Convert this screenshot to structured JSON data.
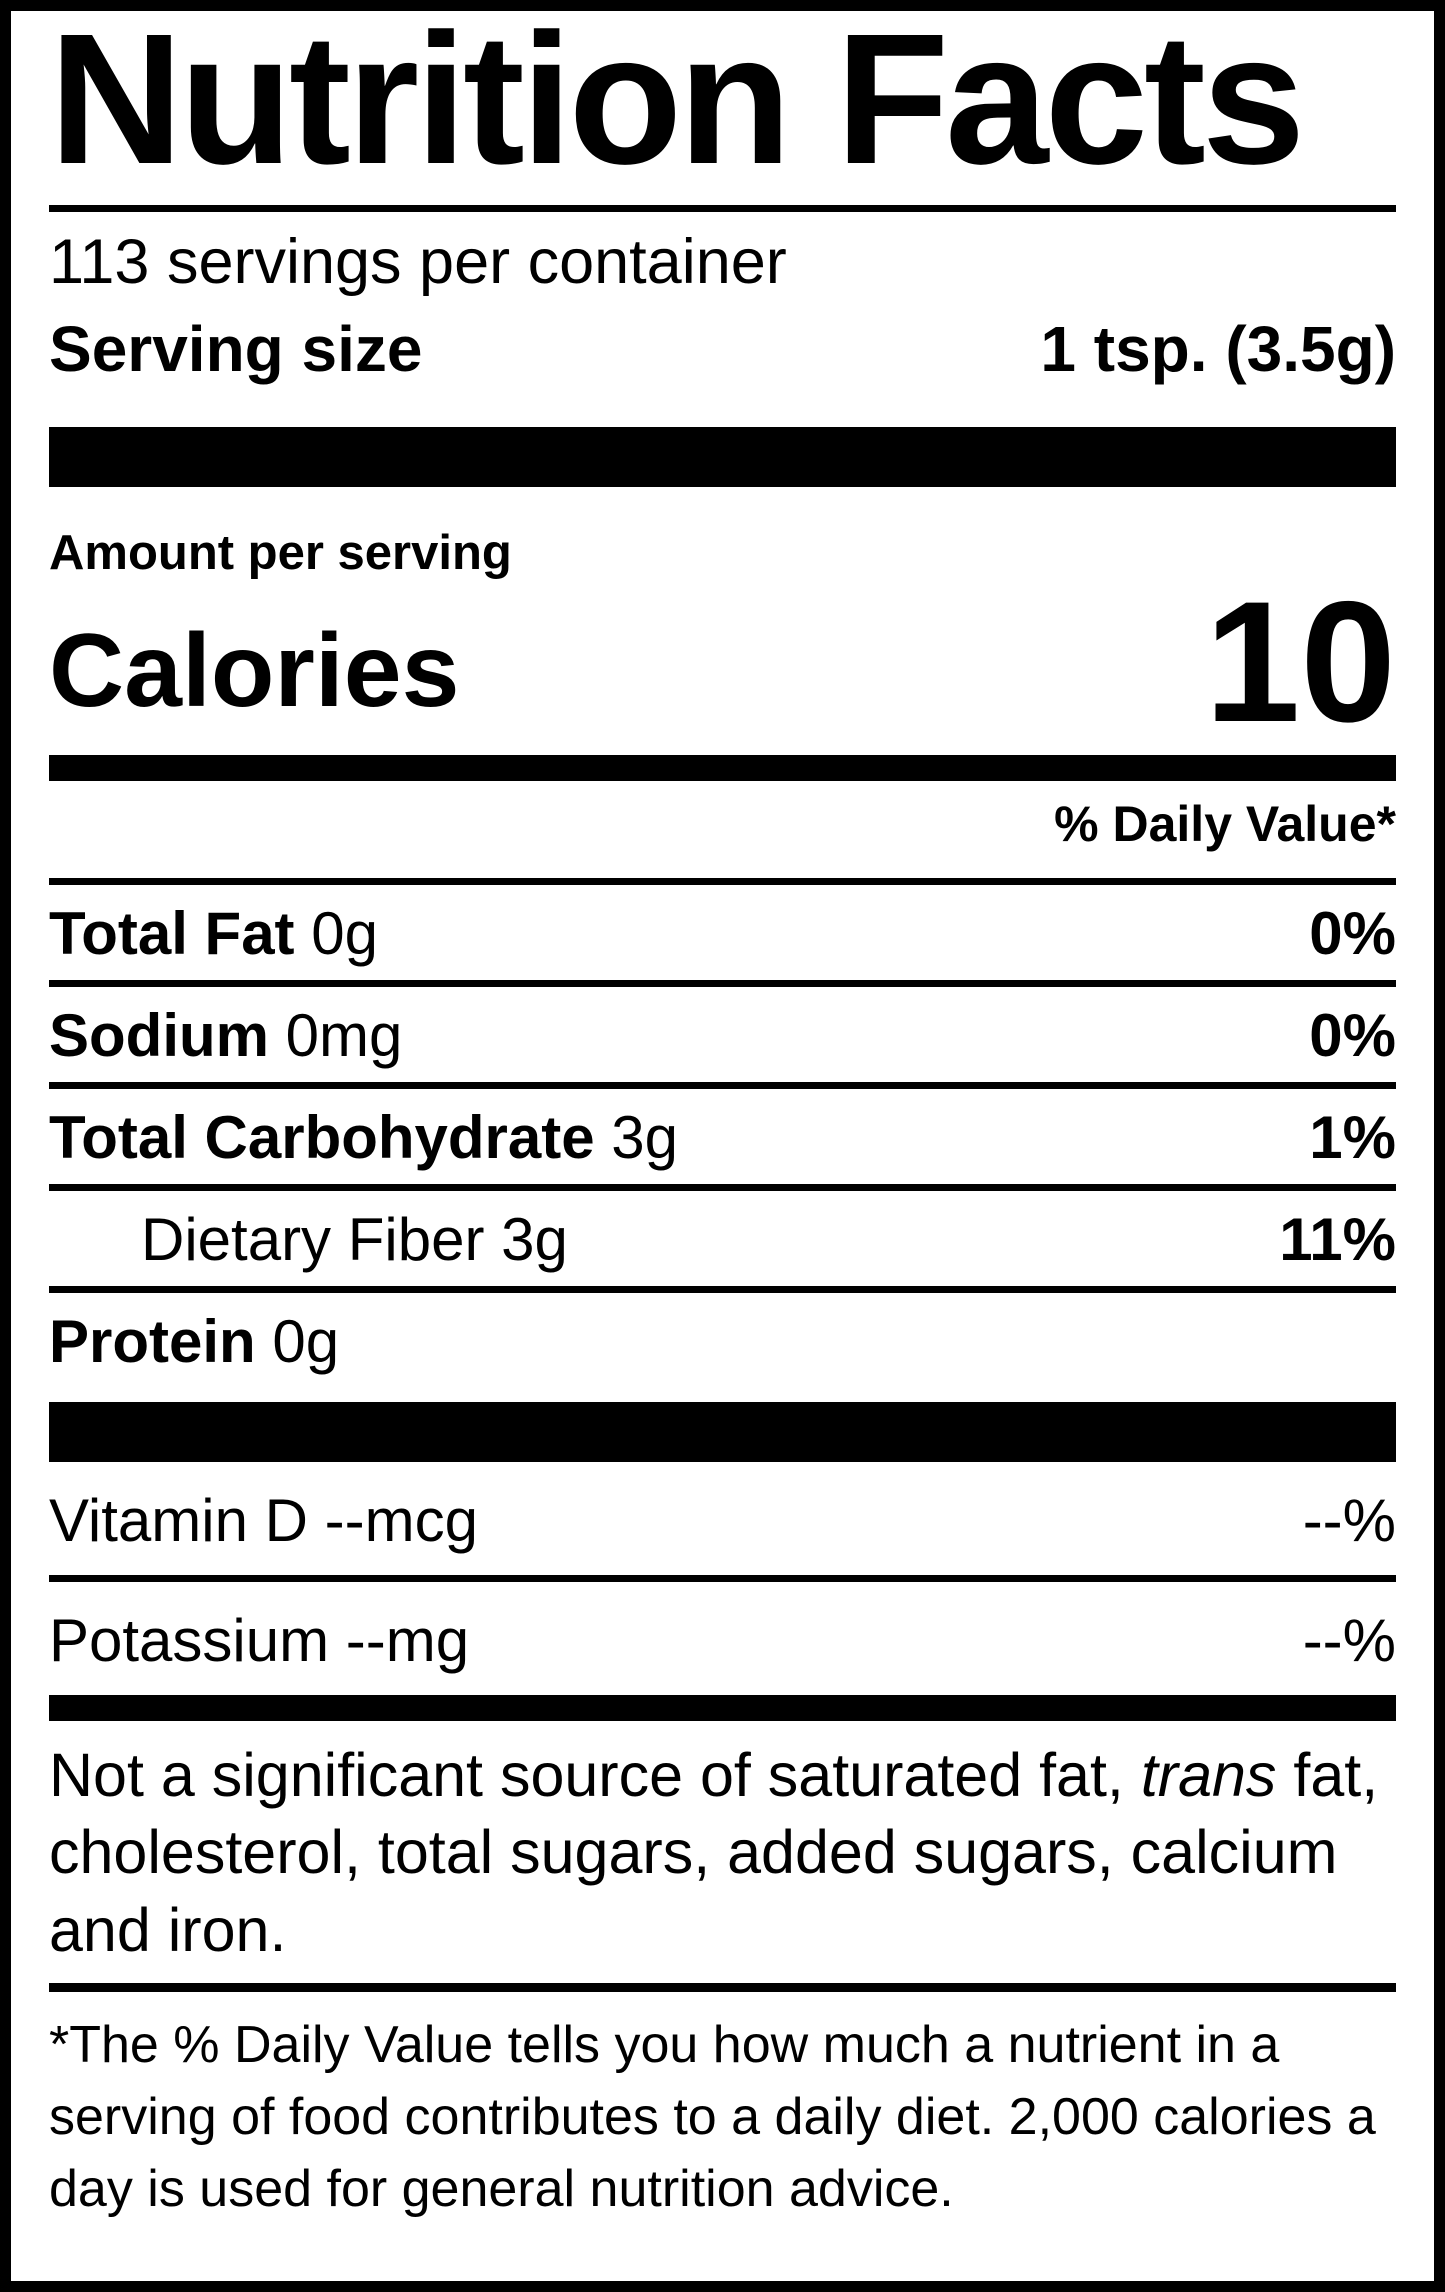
{
  "nutrition_label": {
    "title": "Nutrition Facts",
    "servings_per_container": "113 servings per container",
    "serving_size": {
      "label": "Serving size",
      "value": "1 tsp. (3.5g)"
    },
    "amount_per_serving": "Amount per serving",
    "calories": {
      "label": "Calories",
      "value": "10"
    },
    "daily_value_header": "% Daily Value*",
    "nutrient_rows": [
      {
        "name": "Total Fat",
        "amount": "0g",
        "daily_value": "0%"
      },
      {
        "name": "Sodium",
        "amount": "0mg",
        "daily_value": "0%"
      },
      {
        "name": "Total Carbohydrate",
        "amount": "3g",
        "daily_value": "1%"
      },
      {
        "name": "Dietary Fiber",
        "amount": "3g",
        "daily_value": "11%"
      },
      {
        "name": "Protein",
        "amount": "0g",
        "daily_value": ""
      }
    ],
    "micronutrient_rows": [
      {
        "name": "Vitamin D",
        "amount": "--mcg",
        "daily_value": "--%"
      },
      {
        "name": "Potassium",
        "amount": "--mg",
        "daily_value": "--%"
      }
    ],
    "not_significant_note": {
      "prefix": "Not a significant source of saturated fat, ",
      "italic_word": "trans",
      "suffix": " fat, cholesterol, total sugars, added sugars, calcium and iron."
    },
    "footnote": "*The % Daily Value tells you how much a nutrient in a serving of food contributes to a daily diet. 2,000 calories a day is used for general nutrition advice.",
    "colors": {
      "foreground": "#000000",
      "background": "#ffffff"
    }
  }
}
